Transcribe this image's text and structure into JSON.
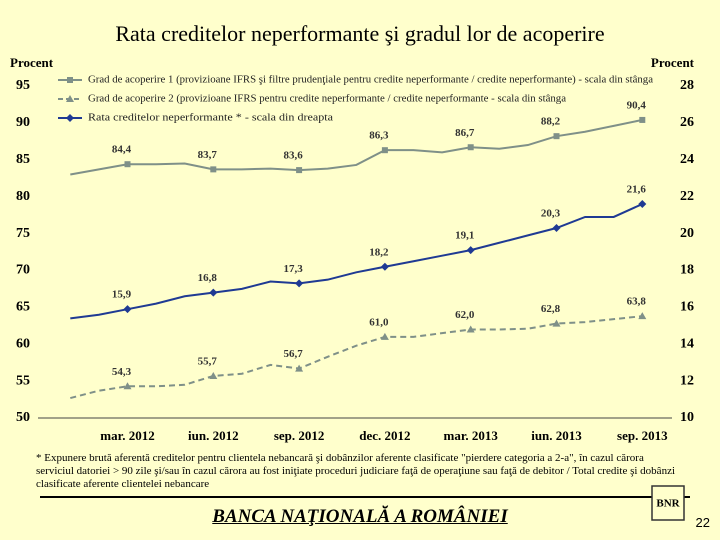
{
  "chart_data": {
    "type": "line",
    "title": "Rata creditelor neperformante şi gradul lor de acoperire",
    "ylabel": "Procent",
    "y2label": "Procent",
    "categories": [
      null,
      null,
      "mar. 2012",
      null,
      null,
      "iun. 2012",
      null,
      null,
      "sep. 2012",
      null,
      null,
      "dec. 2012",
      null,
      null,
      "mar. 2013",
      null,
      null,
      "iun. 2013",
      null,
      null,
      "sep. 2013"
    ],
    "ylim": [
      50,
      95
    ],
    "yticks": [
      50,
      55,
      60,
      65,
      70,
      75,
      80,
      85,
      90,
      95
    ],
    "y2lim": [
      10,
      28
    ],
    "y2ticks": [
      10,
      12,
      14,
      16,
      18,
      20,
      22,
      24,
      26,
      28
    ],
    "series": [
      {
        "name": "Grad de acoperire 1 (provizioane IFRS şi filtre prudenţiale pentru credite neperformante / credite neperformante) - scala din stânga",
        "color": "#7f9088",
        "marker": "square",
        "dash": false,
        "values": [
          83,
          83.7,
          84.4,
          84.4,
          84.5,
          83.7,
          83.7,
          83.8,
          83.6,
          83.8,
          84.3,
          86.3,
          86.3,
          86.0,
          86.7,
          86.5,
          87,
          88.2,
          88.8,
          89.6,
          90.4
        ],
        "value_labels": [
          null,
          null,
          "84,4",
          null,
          null,
          "83,7",
          null,
          null,
          "83,6",
          null,
          null,
          "86,3",
          null,
          null,
          "86,7",
          null,
          null,
          "88,2",
          null,
          null,
          "90,4"
        ]
      },
      {
        "name": "Grad de acoperire 2 (provizioane IFRS pentru credite neperformante / credite neperformante - scala din stânga",
        "color": "#7f9088",
        "marker": "triangle",
        "dash": true,
        "values": [
          52.7,
          53.7,
          54.3,
          54.3,
          54.5,
          55.7,
          56,
          57.2,
          56.7,
          58.3,
          59.8,
          61.0,
          61.0,
          61.5,
          62.0,
          62.0,
          62.1,
          62.8,
          63.0,
          63.4,
          63.8
        ],
        "value_labels": [
          null,
          null,
          "54,3",
          null,
          null,
          "55,7",
          null,
          null,
          "56,7",
          null,
          null,
          "61,0",
          null,
          null,
          "62,0",
          null,
          null,
          "62,8",
          null,
          null,
          "63,8"
        ]
      },
      {
        "name": "Rata creditelor neperformante * - scala din dreapta",
        "color": "#1f3a93",
        "marker": "diamond",
        "dash": false,
        "axis": "y2",
        "values": [
          15.4,
          15.6,
          15.9,
          16.2,
          16.6,
          16.8,
          17.0,
          17.4,
          17.3,
          17.5,
          17.9,
          18.2,
          18.5,
          18.8,
          19.1,
          19.5,
          19.9,
          20.3,
          20.9,
          20.9,
          21.6
        ],
        "value_labels": [
          null,
          null,
          "15,9",
          null,
          null,
          "16,8",
          null,
          null,
          "17,3",
          null,
          null,
          "18,2",
          null,
          null,
          "19,1",
          null,
          null,
          "20,3",
          null,
          null,
          "21,6"
        ]
      }
    ]
  },
  "footnote": "* Expunere brută aferentă creditelor pentru clientela nebancară şi dobânzilor aferente clasificate \"pierdere categoria a 2-a\", în cazul cărora serviciul datoriei > 90 zile şi/sau în cazul cărora au fost iniţiate proceduri judiciare faţă de operaţiune sau faţă de debitor / Total credite şi dobânzi clasificate aferente clientelei nebancare",
  "footer": {
    "bank": "BANCA NAŢIONALĂ A ROMÂNIEI",
    "page": "22"
  }
}
